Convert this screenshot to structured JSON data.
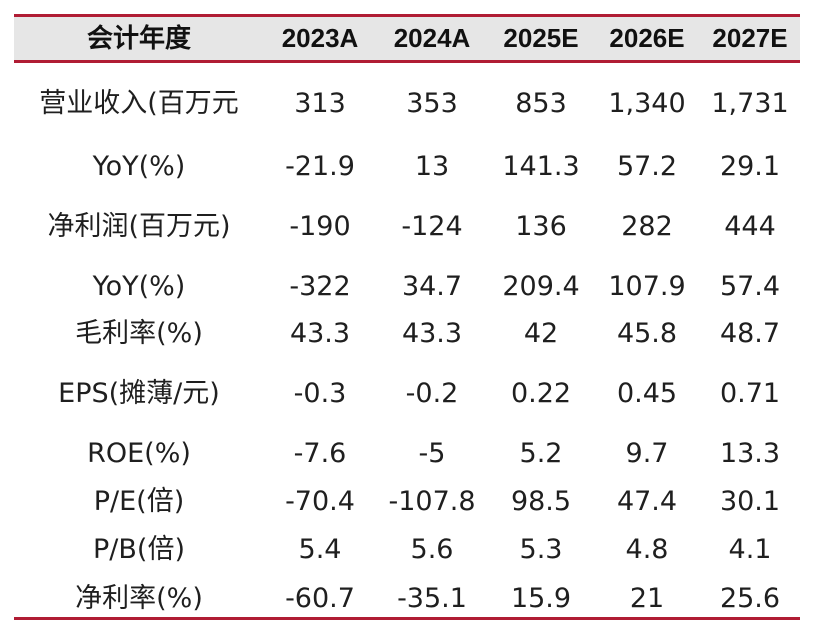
{
  "header": [
    "会计年度",
    "2023A",
    "2024A",
    "2025E",
    "2026E",
    "2027E"
  ],
  "rows": [
    {
      "label": "营业收入(百万元",
      "values": [
        "313",
        "353",
        "853",
        "1,340",
        "1,731"
      ]
    },
    {
      "label": "YoY(%)",
      "values": [
        "-21.9",
        "13",
        "141.3",
        "57.2",
        "29.1"
      ]
    },
    {
      "label": "净利润(百万元)",
      "values": [
        "-190",
        "-124",
        "136",
        "282",
        "444"
      ]
    },
    {
      "label": "YoY(%)",
      "values": [
        "-322",
        "34.7",
        "209.4",
        "107.9",
        "57.4"
      ]
    },
    {
      "label": "毛利率(%)",
      "values": [
        "43.3",
        "43.3",
        "42",
        "45.8",
        "48.7"
      ]
    },
    {
      "label": "EPS(摊薄/元)",
      "values": [
        "-0.3",
        "-0.2",
        "0.22",
        "0.45",
        "0.71"
      ]
    },
    {
      "label": "ROE(%)",
      "values": [
        "-7.6",
        "-5",
        "5.2",
        "9.7",
        "13.3"
      ]
    },
    {
      "label": "P/E(倍)",
      "values": [
        "-70.4",
        "-107.8",
        "98.5",
        "47.4",
        "30.1"
      ]
    },
    {
      "label": "P/B(倍)",
      "values": [
        "5.4",
        "5.6",
        "5.3",
        "4.8",
        "4.1"
      ]
    },
    {
      "label": "净利率(%)",
      "values": [
        "-60.7",
        "-35.1",
        "15.9",
        "21",
        "25.6"
      ]
    }
  ],
  "colors": {
    "rule": "#b01c34",
    "header_bg": "#e6e6e6",
    "text": "#1f1f1f"
  }
}
